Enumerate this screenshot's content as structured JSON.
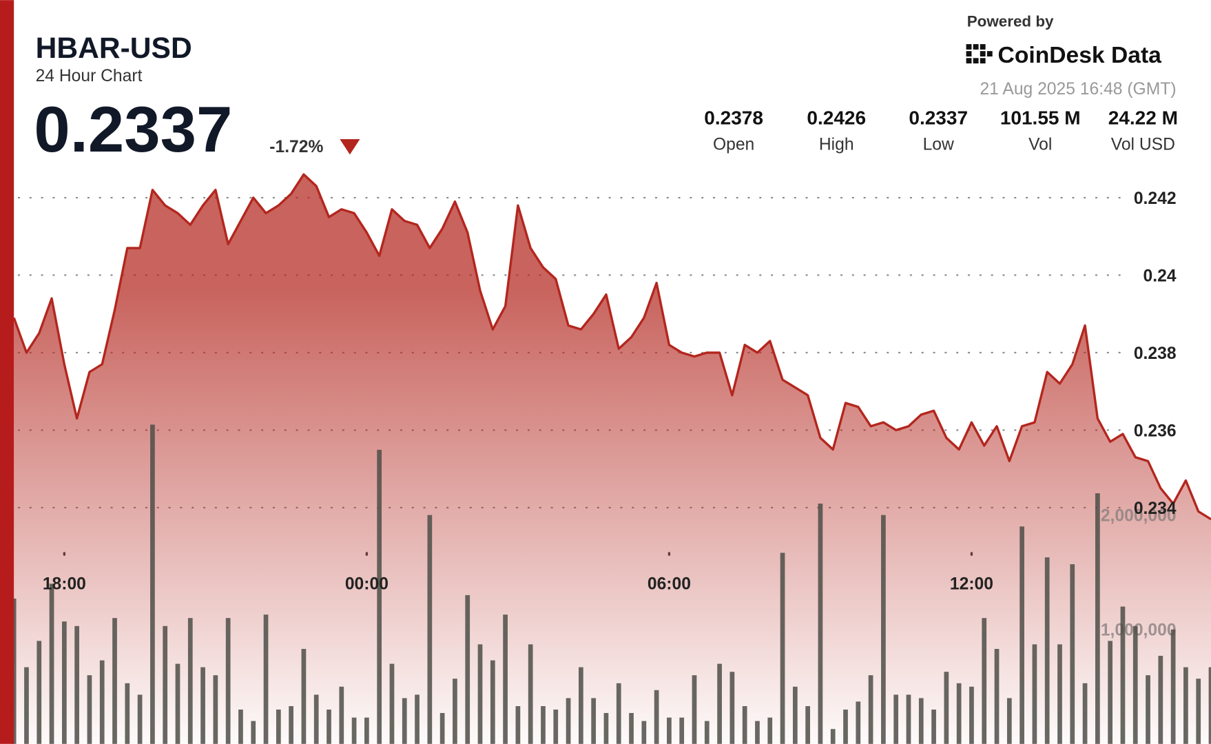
{
  "header": {
    "symbol": "HBAR-USD",
    "subtitle": "24 Hour Chart",
    "price": "0.2337",
    "change": "-1.72%",
    "powered_by": "Powered by",
    "brand": "CoinDesk Data",
    "timestamp": "21 Aug 2025 16:48 (GMT)",
    "stats": [
      {
        "value": "0.2378",
        "label": "Open"
      },
      {
        "value": "0.2426",
        "label": "High"
      },
      {
        "value": "0.2337",
        "label": "Low"
      },
      {
        "value": "101.55 M",
        "label": "Vol"
      },
      {
        "value": "24.22 M",
        "label": "Vol USD"
      }
    ]
  },
  "chart_data": {
    "type": "line",
    "x": [
      17,
      17.25,
      17.5,
      17.75,
      18,
      18.25,
      18.5,
      18.75,
      19,
      19.25,
      19.5,
      19.75,
      20,
      20.25,
      20.5,
      20.75,
      21,
      21.25,
      21.5,
      21.75,
      22,
      22.25,
      22.5,
      22.75,
      23,
      23.25,
      23.5,
      23.75,
      24,
      24.25,
      24.5,
      24.75,
      25,
      25.25,
      25.5,
      25.75,
      26,
      26.25,
      26.5,
      26.75,
      27,
      27.25,
      27.5,
      27.75,
      28,
      28.25,
      28.5,
      28.75,
      29,
      29.25,
      29.5,
      29.75,
      30,
      30.25,
      30.5,
      30.75,
      31,
      31.25,
      31.5,
      31.75,
      32,
      32.25,
      32.5,
      32.75,
      33,
      33.25,
      33.5,
      33.75,
      34,
      34.25,
      34.5,
      34.75,
      35,
      35.25,
      35.5,
      35.75,
      36,
      36.25,
      36.5,
      36.75,
      37,
      37.25,
      37.5,
      37.75,
      38,
      38.25,
      38.5,
      38.75,
      39,
      39.25,
      39.5,
      39.75,
      40,
      40.25,
      40.5,
      40.75
    ],
    "xlim": [
      17,
      40.75
    ],
    "xticks": [
      {
        "value": 18,
        "label": "18:00"
      },
      {
        "value": 24,
        "label": "00:00"
      },
      {
        "value": 30,
        "label": "06:00"
      },
      {
        "value": 36,
        "label": "12:00"
      }
    ],
    "ylim": [
      0.2279,
      0.2471
    ],
    "yticks": [
      0.234,
      0.236,
      0.238,
      0.24,
      0.242
    ],
    "y2lim": [
      0,
      6500000
    ],
    "y2ticks": [
      {
        "value": 1000000,
        "label": "1,000,000"
      },
      {
        "value": 2000000,
        "label": "2,000,000"
      }
    ],
    "grid": true,
    "series": [
      {
        "color": "#b3261e",
        "values": [
          0.2389,
          0.238,
          0.2385,
          0.2394,
          0.2377,
          0.2363,
          0.2375,
          0.2377,
          0.2391,
          0.2407,
          0.2407,
          0.2422,
          0.2418,
          0.2416,
          0.2413,
          0.2418,
          0.2422,
          0.2408,
          0.2414,
          0.242,
          0.2416,
          0.2418,
          0.2421,
          0.2426,
          0.2423,
          0.2415,
          0.2417,
          0.2416,
          0.2411,
          0.2405,
          0.2417,
          0.2414,
          0.2413,
          0.2407,
          0.2412,
          0.2419,
          0.2411,
          0.2396,
          0.2386,
          0.2392,
          0.2418,
          0.2407,
          0.2402,
          0.2399,
          0.2387,
          0.2386,
          0.239,
          0.2395,
          0.2381,
          0.2384,
          0.2389,
          0.2398,
          0.2382,
          0.238,
          0.2379,
          0.238,
          0.238,
          0.2369,
          0.2382,
          0.238,
          0.2383,
          0.2373,
          0.2371,
          0.2369,
          0.2358,
          0.2355,
          0.2367,
          0.2366,
          0.2361,
          0.2362,
          0.236,
          0.2361,
          0.2364,
          0.2365,
          0.2358,
          0.2355,
          0.2362,
          0.2356,
          0.2361,
          0.2352,
          0.2361,
          0.2362,
          0.2375,
          0.2372,
          0.2377,
          0.2387,
          0.2363,
          0.2357,
          0.2359,
          0.2353,
          0.2352,
          0.2345,
          0.2341,
          0.2347,
          0.2339,
          0.2337
        ]
      },
      {
        "type": "bar",
        "axis": "y2",
        "color": "#4d4d48",
        "values": [
          1270000,
          670000,
          900000,
          1400000,
          1070000,
          1030000,
          600000,
          730000,
          1100000,
          530000,
          430000,
          2790000,
          1030000,
          700000,
          1100000,
          670000,
          600000,
          1100000,
          300000,
          200000,
          1130000,
          300000,
          330000,
          830000,
          430000,
          300000,
          500000,
          230000,
          230000,
          2570000,
          700000,
          400000,
          430000,
          2000000,
          270000,
          570000,
          1300000,
          870000,
          730000,
          1130000,
          330000,
          870000,
          330000,
          300000,
          400000,
          670000,
          400000,
          270000,
          530000,
          270000,
          200000,
          470000,
          230000,
          230000,
          600000,
          200000,
          700000,
          630000,
          330000,
          200000,
          230000,
          1670000,
          500000,
          330000,
          2100000,
          130000,
          300000,
          370000,
          600000,
          2000000,
          430000,
          430000,
          400000,
          300000,
          630000,
          530000,
          500000,
          1100000,
          830000,
          400000,
          1900000,
          870000,
          1630000,
          870000,
          1570000,
          530000,
          2190000,
          900000,
          1200000,
          1030000,
          600000,
          770000,
          1000000,
          670000,
          570000,
          670000
        ]
      }
    ]
  }
}
